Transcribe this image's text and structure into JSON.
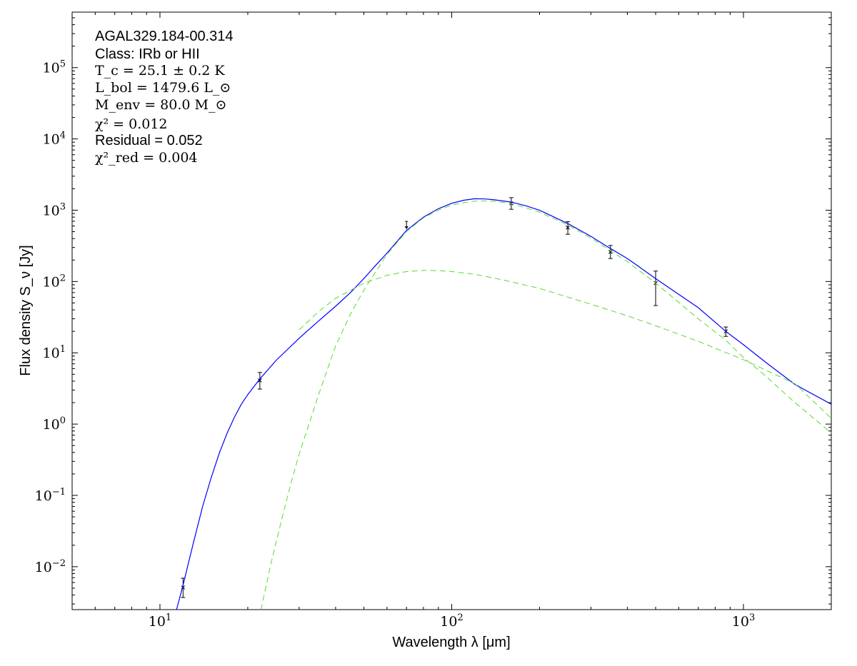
{
  "chart_data": {
    "type": "scatter",
    "title": "",
    "xlabel": "Wavelength λ [μm]",
    "ylabel": "Flux density S_ν [Jy]",
    "xscale": "log",
    "yscale": "log",
    "xlim": [
      5,
      2000
    ],
    "ylim": [
      0.0025,
      600000
    ],
    "grid": false,
    "legend": "none",
    "x_ticks": [
      {
        "base": "10",
        "exp": "1"
      },
      {
        "base": "10",
        "exp": "2"
      },
      {
        "base": "10",
        "exp": "3"
      }
    ],
    "y_ticks": [
      {
        "base": "10",
        "exp": "−2"
      },
      {
        "base": "10",
        "exp": "−1"
      },
      {
        "base": "10",
        "exp": "0"
      },
      {
        "base": "10",
        "exp": "1"
      },
      {
        "base": "10",
        "exp": "2"
      },
      {
        "base": "10",
        "exp": "3"
      },
      {
        "base": "10",
        "exp": "4"
      },
      {
        "base": "10",
        "exp": "5"
      }
    ],
    "annotations": {
      "source": "AGAL329.184-00.314",
      "class": "Class: IRb or HII",
      "tc": "T_c = 25.1 ± 0.2 K",
      "lbol": "L_bol = 1479.6 L_⊙",
      "menv": "M_env = 80.0 M_⊙",
      "chi2": "χ² = 0.012",
      "residual": "Residual = 0.052",
      "chi2red": "χ²_red = 0.004"
    },
    "series": [
      {
        "style": "errorbar",
        "color": "#000000",
        "points": [
          {
            "x": 12,
            "y": 0.0051,
            "ylo": 0.0037,
            "yhi": 0.0069
          },
          {
            "x": 22,
            "y": 4.1,
            "ylo": 3.1,
            "yhi": 5.3
          },
          {
            "x": 70,
            "y": 650,
            "upper_limit": true
          },
          {
            "x": 160,
            "y": 1250,
            "ylo": 1030,
            "yhi": 1500
          },
          {
            "x": 250,
            "y": 570,
            "ylo": 460,
            "yhi": 690
          },
          {
            "x": 350,
            "y": 260,
            "ylo": 210,
            "yhi": 320
          },
          {
            "x": 500,
            "y": 95,
            "ylo": 46,
            "yhi": 140
          },
          {
            "x": 870,
            "y": 20,
            "ylo": 17,
            "yhi": 23
          }
        ]
      },
      {
        "style": "line",
        "color": "#0000ff",
        "points": [
          [
            11.4,
            0.0025
          ],
          [
            12,
            0.0055
          ],
          [
            13,
            0.021
          ],
          [
            14,
            0.07
          ],
          [
            15,
            0.18
          ],
          [
            16,
            0.4
          ],
          [
            17,
            0.75
          ],
          [
            18,
            1.25
          ],
          [
            19,
            1.9
          ],
          [
            20,
            2.6
          ],
          [
            22,
            4.3
          ],
          [
            25,
            7.8
          ],
          [
            30,
            16
          ],
          [
            35,
            28
          ],
          [
            40,
            45
          ],
          [
            45,
            70
          ],
          [
            50,
            110
          ],
          [
            55,
            170
          ],
          [
            60,
            250
          ],
          [
            70,
            520
          ],
          [
            80,
            800
          ],
          [
            90,
            1050
          ],
          [
            100,
            1250
          ],
          [
            110,
            1380
          ],
          [
            120,
            1450
          ],
          [
            130,
            1440
          ],
          [
            140,
            1400
          ],
          [
            160,
            1300
          ],
          [
            180,
            1150
          ],
          [
            200,
            1000
          ],
          [
            250,
            650
          ],
          [
            300,
            430
          ],
          [
            350,
            290
          ],
          [
            400,
            210
          ],
          [
            500,
            110
          ],
          [
            600,
            66
          ],
          [
            700,
            43
          ],
          [
            870,
            20
          ],
          [
            1000,
            13
          ],
          [
            1200,
            7.2
          ],
          [
            1500,
            3.6
          ],
          [
            2000,
            1.9
          ]
        ]
      },
      {
        "style": "dashed",
        "color": "#66dd44",
        "points": [
          [
            22.2,
            0.0025
          ],
          [
            24,
            0.011
          ],
          [
            26,
            0.042
          ],
          [
            28,
            0.14
          ],
          [
            30,
            0.38
          ],
          [
            35,
            2.6
          ],
          [
            40,
            12.5
          ],
          [
            45,
            35
          ],
          [
            50,
            76
          ],
          [
            60,
            240
          ],
          [
            70,
            500
          ],
          [
            80,
            780
          ],
          [
            90,
            1000
          ],
          [
            100,
            1180
          ],
          [
            110,
            1280
          ],
          [
            120,
            1340
          ],
          [
            130,
            1350
          ],
          [
            140,
            1330
          ],
          [
            160,
            1250
          ],
          [
            200,
            940
          ],
          [
            250,
            620
          ],
          [
            300,
            410
          ],
          [
            350,
            270
          ],
          [
            400,
            190
          ],
          [
            500,
            95
          ],
          [
            600,
            51
          ],
          [
            700,
            30
          ],
          [
            870,
            15
          ],
          [
            1000,
            8.6
          ],
          [
            1200,
            4.6
          ],
          [
            1500,
            2.0
          ],
          [
            2000,
            0.75
          ]
        ]
      },
      {
        "style": "dashed",
        "color": "#66dd44",
        "points": [
          [
            30,
            21
          ],
          [
            35,
            38
          ],
          [
            40,
            58
          ],
          [
            50,
            95
          ],
          [
            60,
            122
          ],
          [
            70,
            138
          ],
          [
            80,
            143
          ],
          [
            90,
            142
          ],
          [
            100,
            138
          ],
          [
            120,
            126
          ],
          [
            150,
            105
          ],
          [
            200,
            80
          ],
          [
            300,
            48
          ],
          [
            400,
            33
          ],
          [
            500,
            24
          ],
          [
            700,
            14.5
          ],
          [
            1000,
            8
          ],
          [
            1500,
            3.7
          ],
          [
            2000,
            1.2
          ]
        ]
      }
    ]
  }
}
